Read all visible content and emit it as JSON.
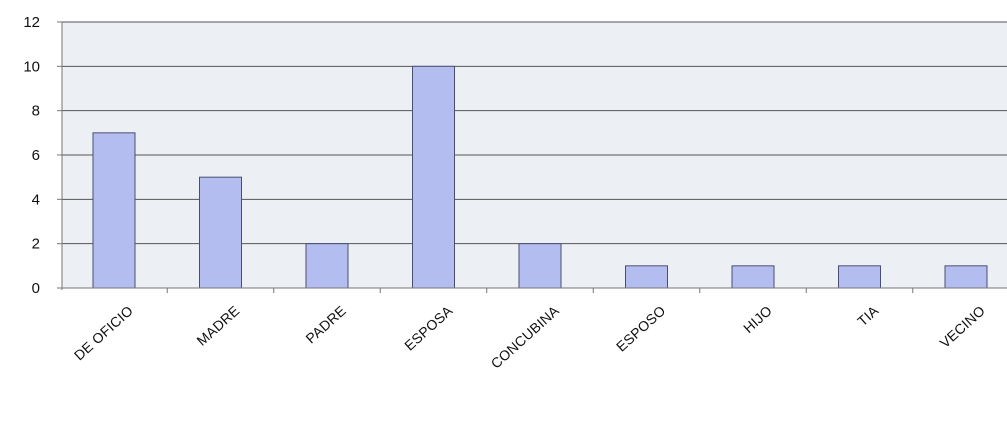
{
  "chart_data": {
    "type": "bar",
    "categories": [
      "DE OFICIO",
      "MADRE",
      "PADRE",
      "ESPOSA",
      "CONCUBINA",
      "ESPOSO",
      "HIJO",
      "TIA",
      "VECINO"
    ],
    "values": [
      7,
      5,
      2,
      10,
      2,
      1,
      1,
      1,
      1
    ],
    "ylim": [
      0,
      12
    ],
    "yticks": [
      0,
      2,
      4,
      6,
      8,
      10,
      12
    ],
    "grid": true,
    "legend": "none",
    "colors": {
      "bar_fill": "#b4bdf0",
      "bar_stroke": "#4a4f70",
      "plot_bg": "#eceff4",
      "grid": "#555555",
      "text": "#111111"
    }
  }
}
